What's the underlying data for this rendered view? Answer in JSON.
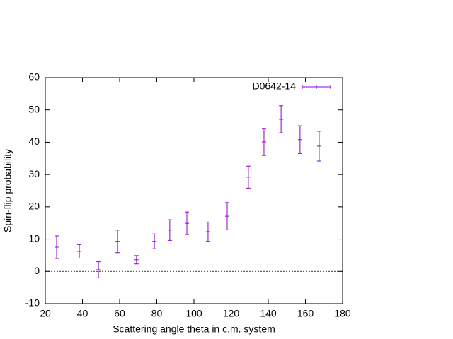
{
  "chart_data": {
    "type": "errorbar",
    "xlabel": "Scattering angle theta in c.m. system",
    "ylabel": "Spin-flip probability",
    "xlim": [
      20,
      180
    ],
    "xticks": [
      20,
      40,
      60,
      80,
      100,
      120,
      140,
      160,
      180
    ],
    "ylim": [
      -10,
      60
    ],
    "yticks": [
      -10,
      0,
      10,
      20,
      30,
      40,
      50,
      60
    ],
    "zeroaxis": true,
    "legend": "top-right",
    "series": [
      {
        "name": "D0642-14",
        "color": "#9400d3",
        "x": [
          26.1,
          38.3,
          48.6,
          58.9,
          69.1,
          78.7,
          87.0,
          96.2,
          107.6,
          117.9,
          129.3,
          137.7,
          146.9,
          157.1,
          167.4
        ],
        "values": [
          7.5,
          6.2,
          0.5,
          9.3,
          3.6,
          9.3,
          12.8,
          14.9,
          12.3,
          17.1,
          29.2,
          40.1,
          47.1,
          40.8,
          38.8
        ],
        "errors": [
          3.5,
          2.1,
          2.5,
          3.5,
          1.3,
          2.3,
          3.2,
          3.5,
          3.0,
          4.2,
          3.4,
          4.2,
          4.2,
          4.3,
          4.6
        ]
      }
    ]
  }
}
